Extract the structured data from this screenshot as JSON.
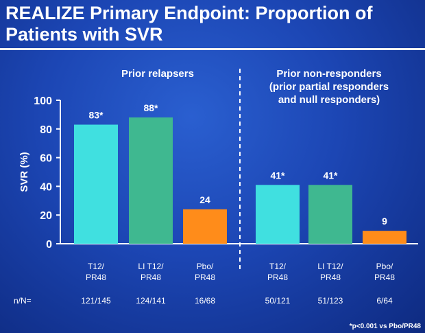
{
  "slide": {
    "title_line1": "REALIZE Primary Endpoint: Proportion of",
    "title_line2": "Patients with SVR",
    "footnote": "*p<0.001 vs Pbo/PR48",
    "nn_label": "n/N="
  },
  "chart_data": {
    "type": "bar",
    "ylabel": "SVR (%)",
    "ylim": [
      0,
      100
    ],
    "yticks": [
      0,
      20,
      40,
      60,
      80,
      100
    ],
    "grid": false,
    "colors": {
      "T12/PR48": "#40e0e0",
      "LI T12/PR48": "#3fb890",
      "Pbo/PR48": "#ff8c1a"
    },
    "panels": [
      {
        "title_lines": [
          "Prior relapsers"
        ],
        "categories": [
          "T12/PR48",
          "LI T12/PR48",
          "Pbo/PR48"
        ],
        "values": [
          83,
          88,
          24
        ],
        "value_labels": [
          "83*",
          "88*",
          "24"
        ],
        "n_over_N": [
          "121/145",
          "124/141",
          "16/68"
        ]
      },
      {
        "title_lines": [
          "Prior non-responders",
          "(prior partial responders",
          "and null responders)"
        ],
        "categories": [
          "T12/PR48",
          "LI T12/PR48",
          "Pbo/PR48"
        ],
        "values": [
          41,
          41,
          9
        ],
        "value_labels": [
          "41*",
          "41*",
          "9"
        ],
        "n_over_N": [
          "50/121",
          "51/123",
          "6/64"
        ]
      }
    ]
  }
}
